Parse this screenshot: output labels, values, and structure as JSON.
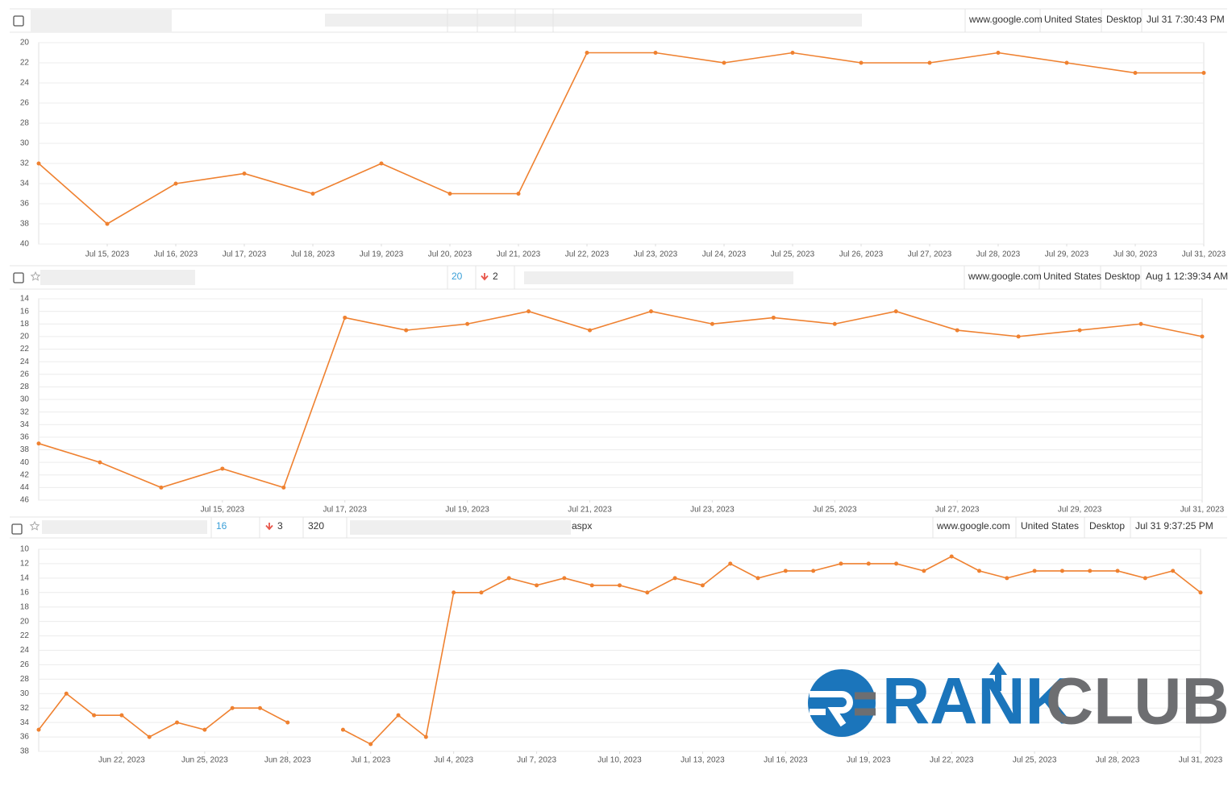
{
  "rows": [
    {
      "domain": "www.google.com",
      "country": "United States",
      "device": "Desktop",
      "date": "Jul 31 7:30:43 PM"
    },
    {
      "rank": 20,
      "change": 2,
      "domain": "www.google.com",
      "country": "United States",
      "device": "Desktop",
      "date": "Aug 1 12:39:34 AM"
    },
    {
      "rank": 16,
      "change": 3,
      "volume": 320,
      "url_suffix": "aspx",
      "domain": "www.google.com",
      "country": "United States",
      "device": "Desktop",
      "date": "Jul 31 9:37:25 PM"
    }
  ],
  "logo": {
    "word1": "RANK",
    "word2": "CLUB"
  },
  "chart_data": [
    {
      "type": "line",
      "color": "#ef8130",
      "grid": true,
      "y_inverted": true,
      "x": [
        "Jul 14, 2023",
        "Jul 15, 2023",
        "Jul 16, 2023",
        "Jul 17, 2023",
        "Jul 18, 2023",
        "Jul 19, 2023",
        "Jul 20, 2023",
        "Jul 21, 2023",
        "Jul 22, 2023",
        "Jul 23, 2023",
        "Jul 24, 2023",
        "Jul 25, 2023",
        "Jul 26, 2023",
        "Jul 27, 2023",
        "Jul 28, 2023",
        "Jul 29, 2023",
        "Jul 30, 2023",
        "Jul 31, 2023"
      ],
      "values": [
        32,
        38,
        34,
        33,
        35,
        32,
        35,
        35,
        21,
        21,
        22,
        21,
        22,
        22,
        21,
        22,
        23,
        23
      ],
      "xlim": [
        "Jul 14, 2023",
        "Jul 31, 2023"
      ],
      "xticks": [
        "Jul 15, 2023",
        "Jul 16, 2023",
        "Jul 17, 2023",
        "Jul 18, 2023",
        "Jul 19, 2023",
        "Jul 20, 2023",
        "Jul 21, 2023",
        "Jul 22, 2023",
        "Jul 23, 2023",
        "Jul 24, 2023",
        "Jul 25, 2023",
        "Jul 26, 2023",
        "Jul 27, 2023",
        "Jul 28, 2023",
        "Jul 29, 2023",
        "Jul 30, 2023",
        "Jul 31, 2023"
      ],
      "ylim": [
        20,
        40
      ],
      "yticks": [
        20,
        22,
        24,
        26,
        28,
        30,
        32,
        34,
        36,
        38,
        40
      ]
    },
    {
      "type": "line",
      "color": "#ef8130",
      "grid": true,
      "y_inverted": true,
      "x": [
        "Jul 12, 2023",
        "Jul 13, 2023",
        "Jul 14, 2023",
        "Jul 15, 2023",
        "Jul 16, 2023",
        "Jul 17, 2023",
        "Jul 18, 2023",
        "Jul 19, 2023",
        "Jul 20, 2023",
        "Jul 21, 2023",
        "Jul 22, 2023",
        "Jul 23, 2023",
        "Jul 24, 2023",
        "Jul 25, 2023",
        "Jul 26, 2023",
        "Jul 27, 2023",
        "Jul 28, 2023",
        "Jul 29, 2023",
        "Jul 30, 2023",
        "Jul 31, 2023"
      ],
      "values": [
        37,
        40,
        44,
        41,
        44,
        17,
        19,
        18,
        16,
        19,
        16,
        18,
        17,
        18,
        16,
        19,
        20,
        19,
        18,
        20
      ],
      "xlim": [
        "Jul 12, 2023",
        "Jul 31, 2023"
      ],
      "xticks": [
        "Jul 15, 2023",
        "Jul 17, 2023",
        "Jul 19, 2023",
        "Jul 21, 2023",
        "Jul 23, 2023",
        "Jul 25, 2023",
        "Jul 27, 2023",
        "Jul 29, 2023",
        "Jul 31, 2023"
      ],
      "ylim": [
        14,
        46
      ],
      "yticks": [
        14,
        16,
        18,
        20,
        22,
        24,
        26,
        28,
        30,
        32,
        34,
        36,
        38,
        40,
        42,
        44,
        46
      ]
    },
    {
      "type": "line",
      "color": "#ef8130",
      "grid": true,
      "y_inverted": true,
      "x": [
        "Jun 19, 2023",
        "Jun 20, 2023",
        "Jun 21, 2023",
        "Jun 22, 2023",
        "Jun 23, 2023",
        "Jun 24, 2023",
        "Jun 25, 2023",
        "Jun 26, 2023",
        "Jun 27, 2023",
        "Jun 28, 2023",
        "Jun 29, 2023",
        "Jun 30, 2023",
        "Jul 1, 2023",
        "Jul 2, 2023",
        "Jul 3, 2023",
        "Jul 4, 2023",
        "Jul 5, 2023",
        "Jul 6, 2023",
        "Jul 7, 2023",
        "Jul 8, 2023",
        "Jul 9, 2023",
        "Jul 10, 2023",
        "Jul 11, 2023",
        "Jul 12, 2023",
        "Jul 13, 2023",
        "Jul 14, 2023",
        "Jul 15, 2023",
        "Jul 16, 2023",
        "Jul 17, 2023",
        "Jul 18, 2023",
        "Jul 19, 2023",
        "Jul 20, 2023",
        "Jul 21, 2023",
        "Jul 22, 2023",
        "Jul 23, 2023",
        "Jul 24, 2023",
        "Jul 25, 2023",
        "Jul 26, 2023",
        "Jul 27, 2023",
        "Jul 28, 2023",
        "Jul 29, 2023",
        "Jul 30, 2023",
        "Jul 31, 2023"
      ],
      "values": [
        35,
        30,
        33,
        33,
        36,
        34,
        35,
        32,
        32,
        34,
        null,
        35,
        37,
        33,
        36,
        16,
        16,
        14,
        15,
        14,
        15,
        15,
        16,
        14,
        15,
        12,
        14,
        13,
        13,
        12,
        12,
        12,
        13,
        11,
        13,
        14,
        13,
        13,
        13,
        13,
        14,
        13,
        16
      ],
      "xlim": [
        "Jun 19, 2023",
        "Jul 31, 2023"
      ],
      "xticks": [
        "Jun 22, 2023",
        "Jun 25, 2023",
        "Jun 28, 2023",
        "Jul 1, 2023",
        "Jul 4, 2023",
        "Jul 7, 2023",
        "Jul 10, 2023",
        "Jul 13, 2023",
        "Jul 16, 2023",
        "Jul 19, 2023",
        "Jul 22, 2023",
        "Jul 25, 2023",
        "Jul 28, 2023",
        "Jul 31, 2023"
      ],
      "ylim": [
        10,
        38
      ],
      "yticks": [
        10,
        12,
        14,
        16,
        18,
        20,
        22,
        24,
        26,
        28,
        30,
        32,
        34,
        36,
        38
      ]
    }
  ]
}
